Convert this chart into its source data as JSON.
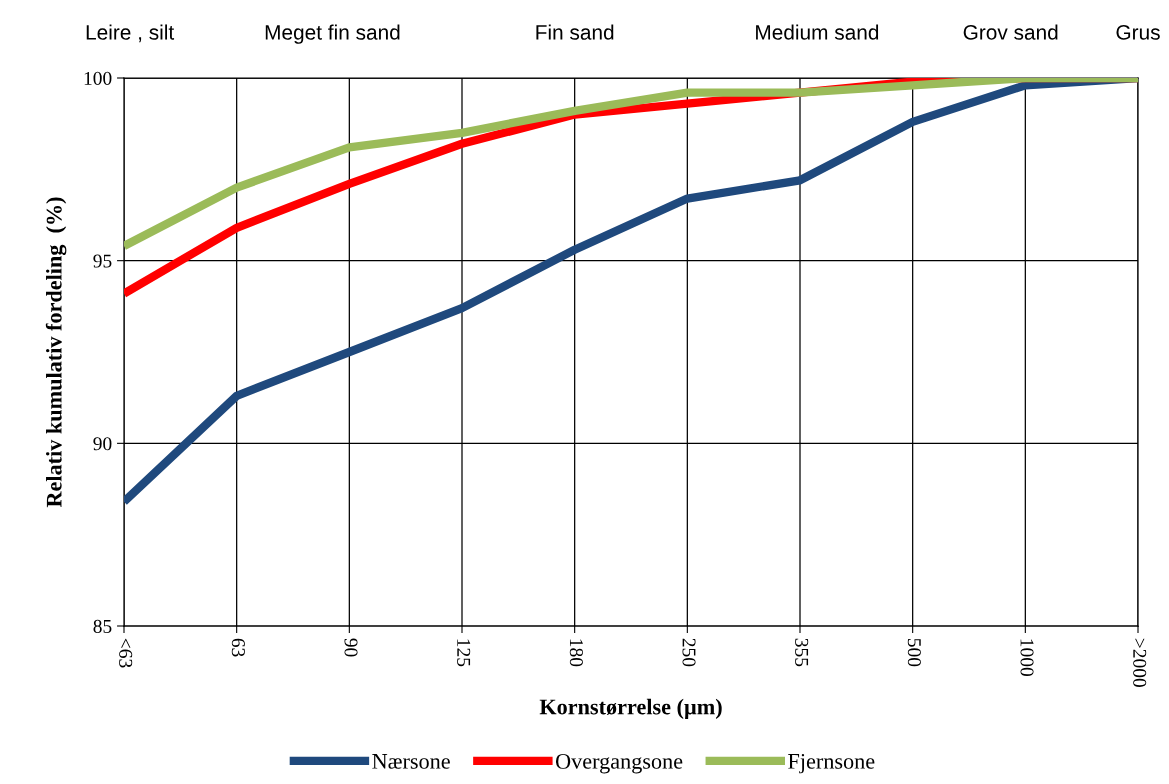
{
  "chart_data": {
    "type": "line",
    "xlabel": "Kornstørrelse (µm)",
    "ylabel": "Relativ kumulativ fordeling  (%)",
    "categories": [
      "<63",
      "63",
      "90",
      "125",
      "180",
      "250",
      "355",
      "500",
      "1000",
      ">2000"
    ],
    "series": [
      {
        "name": "Nærsone",
        "color": "#1f497d",
        "values": [
          88.4,
          91.3,
          92.5,
          93.7,
          95.3,
          96.7,
          97.2,
          98.8,
          99.8,
          100
        ]
      },
      {
        "name": "Overgangsone",
        "color": "#ff0000",
        "values": [
          94.1,
          95.9,
          97.1,
          98.2,
          99.0,
          99.3,
          99.6,
          99.9,
          100,
          100
        ]
      },
      {
        "name": "Fjernsone",
        "color": "#9bbb59",
        "values": [
          95.4,
          97.0,
          98.1,
          98.5,
          99.1,
          99.6,
          99.6,
          99.8,
          100,
          100
        ]
      }
    ],
    "ylim": [
      85,
      100
    ],
    "yticks": [
      85,
      90,
      95,
      100
    ],
    "grid": true,
    "legend": "bottom",
    "marker": "none",
    "line_style": "solid",
    "annotations": [
      "Leire , silt",
      "Meget fin sand",
      "Fin sand",
      "Medium sand",
      "Grov sand",
      "Grus"
    ]
  }
}
